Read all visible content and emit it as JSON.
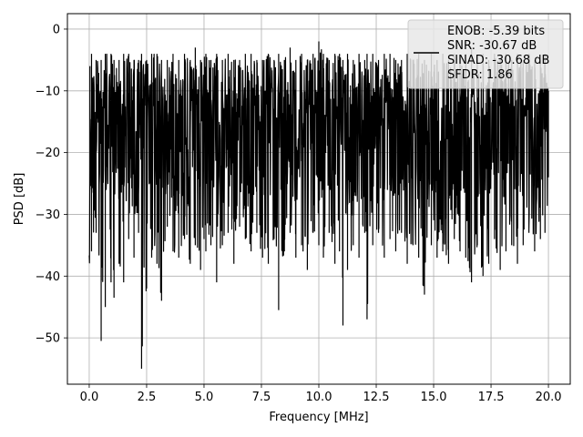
{
  "chart_data": {
    "type": "line",
    "title": "",
    "xlabel": "Frequency [MHz]",
    "ylabel": "PSD [dB]",
    "xlim": [
      -0.95,
      20.95
    ],
    "ylim": [
      -57.5,
      2.5
    ],
    "xticks": [
      0.0,
      2.5,
      5.0,
      7.5,
      10.0,
      12.5,
      15.0,
      17.5,
      20.0
    ],
    "xtick_labels": [
      "0.0",
      "2.5",
      "5.0",
      "7.5",
      "10.0",
      "12.5",
      "15.0",
      "17.5",
      "20.0"
    ],
    "yticks": [
      0,
      -10,
      -20,
      -30,
      -40,
      -50
    ],
    "ytick_labels": [
      "0",
      "−10",
      "−20",
      "−30",
      "−40",
      "−50"
    ],
    "grid": true,
    "legend_position": "top-right",
    "legend": [
      "ENOB: -5.39 bits",
      "SNR: -30.67 dB",
      "SINAD: -30.68 dB",
      "SFDR: 1.86"
    ],
    "line_color": "#000000",
    "series": [
      {
        "x": [
          0.0,
          0.03,
          0.1,
          0.3,
          0.52,
          0.7,
          0.95,
          1.08,
          1.3,
          1.5,
          1.72,
          1.95,
          2.15,
          2.28,
          2.5,
          2.72,
          2.95,
          3.15,
          3.4,
          3.65,
          3.9,
          4.15,
          4.4,
          4.62,
          4.85,
          5.08,
          5.3,
          5.55,
          5.8,
          6.05,
          6.3,
          6.55,
          6.8,
          7.05,
          7.3,
          7.55,
          7.8,
          8.05,
          8.25,
          8.5,
          8.75,
          9.0,
          9.25,
          9.5,
          9.75,
          10.0,
          10.2,
          10.45,
          10.7,
          10.9,
          11.05,
          11.25,
          11.5,
          11.75,
          12.0,
          12.1,
          12.35,
          12.6,
          12.85,
          13.1,
          13.35,
          13.6,
          13.85,
          14.1,
          14.35,
          14.6,
          14.9,
          15.15,
          15.4,
          15.65,
          15.9,
          16.15,
          16.4,
          16.65,
          16.9,
          17.15,
          17.4,
          17.65,
          17.9,
          18.15,
          18.4,
          18.65,
          18.9,
          19.15,
          19.4,
          19.65,
          19.85,
          20.0
        ],
        "y_high": [
          -23,
          -6,
          -4,
          -5,
          -5,
          -4,
          -4,
          -5,
          -5,
          -4,
          -4,
          -5,
          -5,
          -4,
          -5,
          -4,
          -4,
          -5,
          -5,
          -4,
          -5,
          -4,
          -5,
          -3,
          -5,
          -4,
          -5,
          -4,
          -5,
          -4,
          -5,
          -5,
          -4,
          -4,
          -5,
          -5,
          -4,
          -5,
          -4,
          -5,
          -3,
          -5,
          -4,
          -5,
          -4,
          -2,
          -4,
          -5,
          -4,
          -4,
          -5,
          -4,
          -5,
          -4,
          -5,
          -4,
          -4,
          -5,
          -4,
          -4,
          -5,
          -5,
          -4,
          -5,
          -4,
          -5,
          -4,
          -5,
          -4,
          -5,
          -4,
          -5,
          -4,
          -3,
          -5,
          -4,
          -5,
          -4,
          -5,
          -4,
          -5,
          -4,
          -5,
          -4,
          -5,
          -5,
          -4,
          -10
        ],
        "y_low": [
          -23,
          -26,
          -36,
          -33,
          -50.5,
          -45,
          -41,
          -43.5,
          -38,
          -41,
          -34,
          -37,
          -33,
          -55,
          -42,
          -37,
          -38,
          -44,
          -32,
          -36,
          -37,
          -34,
          -38,
          -35,
          -39,
          -36,
          -35,
          -41,
          -35,
          -33,
          -38,
          -32,
          -34,
          -36,
          -33,
          -37,
          -38,
          -34,
          -45.5,
          -36,
          -33,
          -37,
          -35,
          -39,
          -33,
          -35,
          -37,
          -33,
          -38,
          -36,
          -48,
          -39,
          -35,
          -37,
          -33,
          -47,
          -35,
          -33,
          -37,
          -34,
          -36,
          -33,
          -38,
          -35,
          -37,
          -43,
          -35,
          -37,
          -36,
          -38,
          -34,
          -36,
          -37,
          -41,
          -35,
          -40,
          -38,
          -34,
          -39,
          -36,
          -35,
          -38,
          -35,
          -33,
          -36,
          -34,
          -33,
          -24
        ]
      }
    ]
  }
}
